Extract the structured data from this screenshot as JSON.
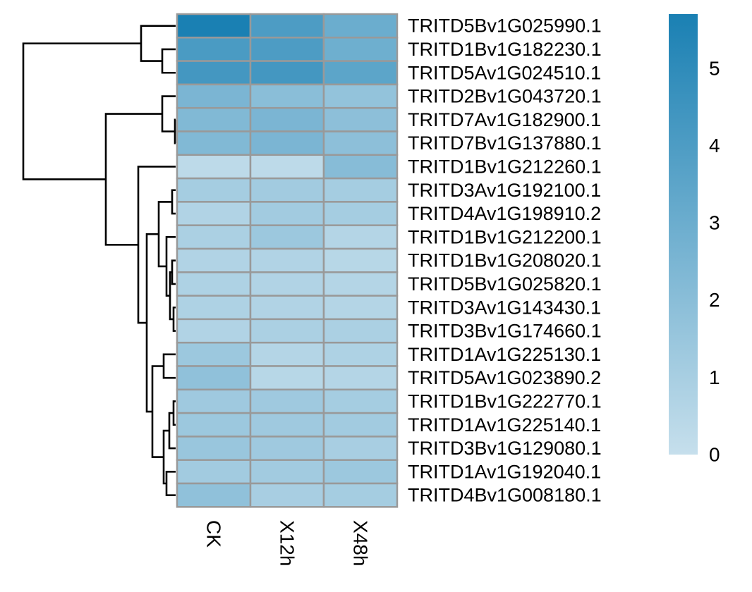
{
  "chart_data": {
    "type": "heatmap",
    "columns": [
      "CK",
      "X12h",
      "X48h"
    ],
    "rows": [
      "TRITD5Bv1G025990.1",
      "TRITD1Bv1G182230.1",
      "TRITD5Av1G024510.1",
      "TRITD2Bv1G043720.1",
      "TRITD7Av1G182900.1",
      "TRITD7Bv1G137880.1",
      "TRITD1Bv1G212260.1",
      "TRITD3Av1G192100.1",
      "TRITD4Av1G198910.2",
      "TRITD1Bv1G212200.1",
      "TRITD1Bv1G208020.1",
      "TRITD5Bv1G025820.1",
      "TRITD3Av1G143430.1",
      "TRITD3Bv1G174660.1",
      "TRITD1Av1G225130.1",
      "TRITD5Av1G023890.2",
      "TRITD1Bv1G222770.1",
      "TRITD1Av1G225140.1",
      "TRITD3Bv1G129080.1",
      "TRITD1Av1G192040.1",
      "TRITD4Bv1G008180.1"
    ],
    "values": [
      [
        5.7,
        4.0,
        3.0
      ],
      [
        4.1,
        4.0,
        2.9
      ],
      [
        4.3,
        4.3,
        3.5
      ],
      [
        2.5,
        2.0,
        1.7
      ],
      [
        2.3,
        2.5,
        1.9
      ],
      [
        2.3,
        2.5,
        1.9
      ],
      [
        0.3,
        0.3,
        2.1
      ],
      [
        1.1,
        1.2,
        1.1
      ],
      [
        0.7,
        1.2,
        1.1
      ],
      [
        0.9,
        1.4,
        0.6
      ],
      [
        0.7,
        0.7,
        0.5
      ],
      [
        0.8,
        0.7,
        0.6
      ],
      [
        0.8,
        0.7,
        0.6
      ],
      [
        0.7,
        0.9,
        0.9
      ],
      [
        1.4,
        0.6,
        0.8
      ],
      [
        1.8,
        0.5,
        0.6
      ],
      [
        1.3,
        1.3,
        1.1
      ],
      [
        1.4,
        1.3,
        1.2
      ],
      [
        1.5,
        1.3,
        1.0
      ],
      [
        1.2,
        1.2,
        1.4
      ],
      [
        1.8,
        1.0,
        1.1
      ]
    ],
    "legend": {
      "min": 0,
      "max": 5.7,
      "ticks": [
        "0",
        "1",
        "2",
        "3",
        "4",
        "5"
      ],
      "placement": "right"
    },
    "colors": {
      "low": "#c6dfec",
      "high": "#1a80b3",
      "cell_border": "#999999",
      "dendrogram": "#000000"
    },
    "row_dendrogram": "clustered (row order as shown)"
  }
}
